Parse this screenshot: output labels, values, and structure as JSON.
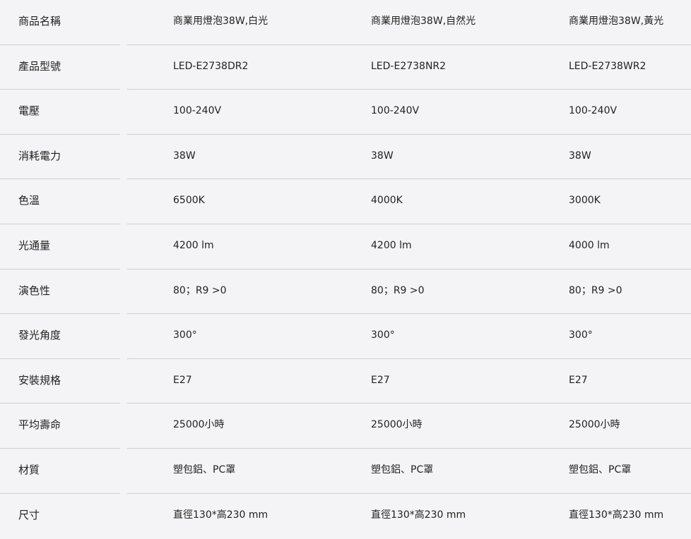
{
  "rows": [
    {
      "label": "商品名稱",
      "values": [
        "商業用燈泡38W,白光",
        "商業用燈泡38W,自然光",
        "商業用燈泡38W,黃光"
      ]
    },
    {
      "label": "產品型號",
      "values": [
        "LED-E2738DR2",
        "LED-E2738NR2",
        "LED-E2738WR2"
      ]
    },
    {
      "label": "電壓",
      "values": [
        "100-240V",
        "100-240V",
        "100-240V"
      ]
    },
    {
      "label": "消耗電力",
      "values": [
        "38W",
        "38W",
        "38W"
      ]
    },
    {
      "label": "色溫",
      "values": [
        "6500K",
        "4000K",
        "3000K"
      ]
    },
    {
      "label": "光通量",
      "values": [
        "4200 lm",
        "4200 lm",
        "4000 lm"
      ]
    },
    {
      "label": "演色性",
      "values": [
        "80；R9 >0",
        "80；R9 >0",
        "80；R9 >0"
      ]
    },
    {
      "label": "發光角度",
      "values": [
        "300°",
        "300°",
        "300°"
      ]
    },
    {
      "label": "安裝規格",
      "values": [
        "E27",
        "E27",
        "E27"
      ]
    },
    {
      "label": "平均壽命",
      "values": [
        "25000小時",
        "25000小時",
        "25000小時"
      ]
    },
    {
      "label": "材質",
      "values": [
        "塑包鋁、PC罩",
        "塑包鋁、PC罩",
        "塑包鋁、PC罩"
      ]
    },
    {
      "label": "尺寸",
      "values": [
        "直徑130*高230 mm",
        "直徑130*高230 mm",
        "直徑130*高230 mm"
      ]
    }
  ]
}
